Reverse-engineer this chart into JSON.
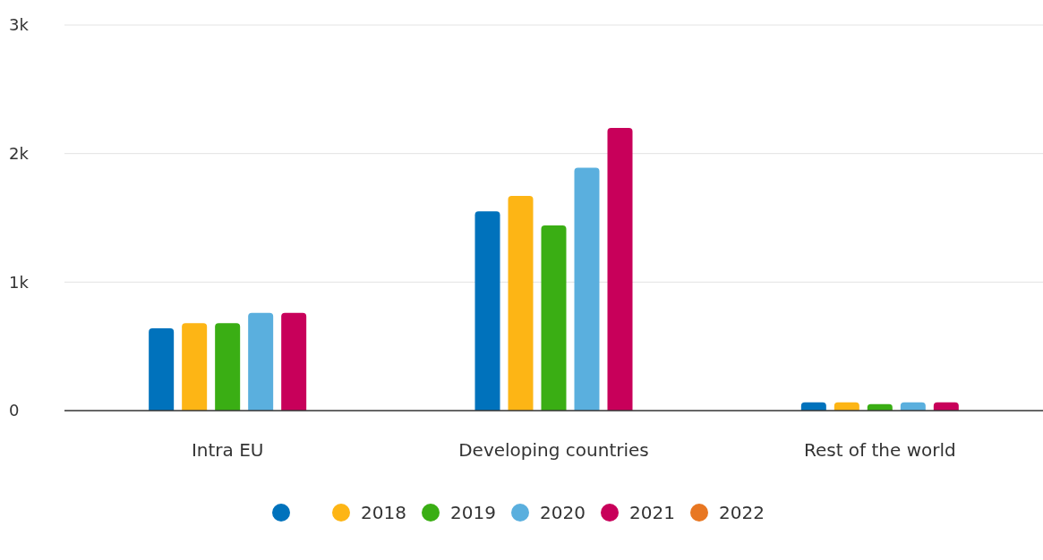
{
  "chart_data": {
    "type": "bar",
    "categories": [
      "Intra EU",
      "Developing countries",
      "Rest of the world"
    ],
    "series": [
      {
        "color": "#0072bc",
        "values": [
          640,
          1550,
          65
        ]
      },
      {
        "name": "2018",
        "color": "#fdb515",
        "values": [
          680,
          1670,
          65
        ]
      },
      {
        "name": "2019",
        "color": "#3aae14",
        "values": [
          680,
          1440,
          50
        ]
      },
      {
        "name": "2020",
        "color": "#5aafde",
        "values": [
          760,
          1890,
          65
        ]
      },
      {
        "name": "2021",
        "color": "#c8005a",
        "values": [
          760,
          2200,
          65
        ]
      },
      {
        "name": "2022",
        "color": "#e87722",
        "values": [
          null,
          null,
          null
        ]
      }
    ],
    "ylim": [
      0,
      3000
    ],
    "yticks": [
      0,
      {
        "value": 1000,
        "label": "1k"
      },
      {
        "value": 2000,
        "label": "2k"
      },
      {
        "value": 3000,
        "label": "3k"
      }
    ],
    "grid": "y",
    "legend": "bottom"
  }
}
